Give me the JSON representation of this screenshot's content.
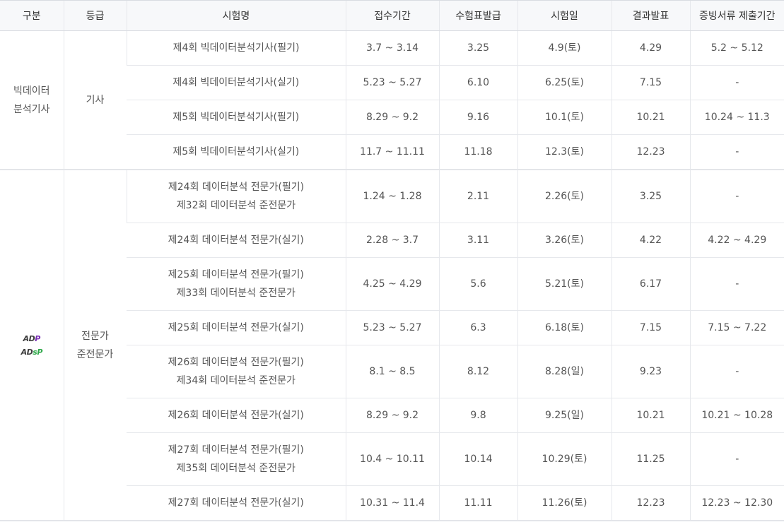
{
  "headers": [
    "구분",
    "등급",
    "시험명",
    "접수기간",
    "수험표발급",
    "시험일",
    "결과발표",
    "증빙서류 제출기간"
  ],
  "groups": [
    {
      "category_lines": [
        "빅데이터",
        "분석기사"
      ],
      "grade_lines": [
        "기사"
      ],
      "rows": [
        {
          "name_lines": [
            "제4회 빅데이터분석기사(필기)"
          ],
          "reg": "3.7 ~ 3.14",
          "ticket": "3.25",
          "exam": "4.9(토)",
          "result": "4.29",
          "docs": "5.2 ~ 5.12"
        },
        {
          "name_lines": [
            "제4회 빅데이터분석기사(실기)"
          ],
          "reg": "5.23 ~ 5.27",
          "ticket": "6.10",
          "exam": "6.25(토)",
          "result": "7.15",
          "docs": "-"
        },
        {
          "name_lines": [
            "제5회 빅데이터분석기사(필기)"
          ],
          "reg": "8.29 ~ 9.2",
          "ticket": "9.16",
          "exam": "10.1(토)",
          "result": "10.21",
          "docs": "10.24 ~ 11.3"
        },
        {
          "name_lines": [
            "제5회 빅데이터분석기사(실기)"
          ],
          "reg": "11.7 ~ 11.11",
          "ticket": "11.18",
          "exam": "12.3(토)",
          "result": "12.23",
          "docs": "-"
        }
      ]
    },
    {
      "logos": [
        {
          "parts": [
            "AD",
            "P"
          ]
        },
        {
          "parts": [
            "AD",
            "s",
            "P"
          ]
        }
      ],
      "grade_lines": [
        "전문가",
        "준전문가"
      ],
      "rows": [
        {
          "name_lines": [
            "제24회 데이터분석 전문가(필기)",
            "제32회 데이터분석 준전문가"
          ],
          "reg": "1.24 ~ 1.28",
          "ticket": "2.11",
          "exam": "2.26(토)",
          "result": "3.25",
          "docs": "-"
        },
        {
          "name_lines": [
            "제24회 데이터분석 전문가(실기)"
          ],
          "reg": "2.28 ~ 3.7",
          "ticket": "3.11",
          "exam": "3.26(토)",
          "result": "4.22",
          "docs": "4.22 ~ 4.29"
        },
        {
          "name_lines": [
            "제25회 데이터분석 전문가(필기)",
            "제33회 데이터분석 준전문가"
          ],
          "reg": "4.25 ~ 4.29",
          "ticket": "5.6",
          "exam": "5.21(토)",
          "result": "6.17",
          "docs": "-"
        },
        {
          "name_lines": [
            "제25회 데이터분석 전문가(실기)"
          ],
          "reg": "5.23 ~ 5.27",
          "ticket": "6.3",
          "exam": "6.18(토)",
          "result": "7.15",
          "docs": "7.15 ~ 7.22"
        },
        {
          "name_lines": [
            "제26회 데이터분석 전문가(필기)",
            "제34회 데이터분석 준전문가"
          ],
          "reg": "8.1 ~ 8.5",
          "ticket": "8.12",
          "exam": "8.28(일)",
          "result": "9.23",
          "docs": "-"
        },
        {
          "name_lines": [
            "제26회 데이터분석 전문가(실기)"
          ],
          "reg": "8.29 ~ 9.2",
          "ticket": "9.8",
          "exam": "9.25(일)",
          "result": "10.21",
          "docs": "10.21 ~ 10.28"
        },
        {
          "name_lines": [
            "제27회 데이터분석 전문가(필기)",
            "제35회 데이터분석 준전문가"
          ],
          "reg": "10.4 ~ 10.11",
          "ticket": "10.14",
          "exam": "10.29(토)",
          "result": "11.25",
          "docs": "-"
        },
        {
          "name_lines": [
            "제27회 데이터분석 전문가(실기)"
          ],
          "reg": "10.31 ~ 11.4",
          "ticket": "11.11",
          "exam": "11.26(토)",
          "result": "12.23",
          "docs": "12.23 ~ 12.30"
        }
      ]
    }
  ]
}
